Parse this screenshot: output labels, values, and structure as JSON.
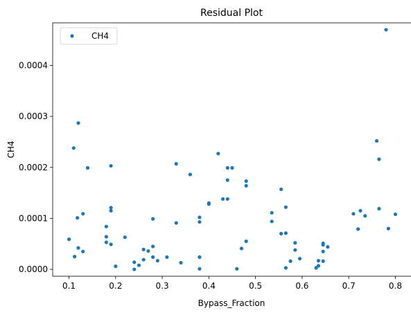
{
  "chart_data": {
    "type": "scatter",
    "title": "Residual Plot",
    "xlabel": "Bypass_Fraction",
    "ylabel": "CH4",
    "xlim": [
      0.065,
      0.835
    ],
    "ylim": [
      -1.35e-05,
      0.0004835
    ],
    "xticks": [
      {
        "value": 0.1,
        "label": "0.1"
      },
      {
        "value": 0.2,
        "label": "0.2"
      },
      {
        "value": 0.3,
        "label": "0.3"
      },
      {
        "value": 0.4,
        "label": "0.4"
      },
      {
        "value": 0.5,
        "label": "0.5"
      },
      {
        "value": 0.6,
        "label": "0.6"
      },
      {
        "value": 0.7,
        "label": "0.7"
      },
      {
        "value": 0.8,
        "label": "0.8"
      }
    ],
    "yticks": [
      {
        "value": 0.0,
        "label": "0.0000"
      },
      {
        "value": 0.0001,
        "label": "0.0001"
      },
      {
        "value": 0.0002,
        "label": "0.0002"
      },
      {
        "value": 0.0003,
        "label": "0.0003"
      },
      {
        "value": 0.0004,
        "label": "0.0004"
      }
    ],
    "grid": false,
    "legend": {
      "position": "upper-left"
    },
    "series": [
      {
        "name": "CH4",
        "color": "#1f77b4",
        "points": [
          [
            0.1,
            5.9e-05
          ],
          [
            0.11,
            0.000238
          ],
          [
            0.112,
            2.5e-05
          ],
          [
            0.118,
            0.000101
          ],
          [
            0.12,
            4.2e-05
          ],
          [
            0.12,
            0.000287
          ],
          [
            0.13,
            0.000109
          ],
          [
            0.13,
            3.5e-05
          ],
          [
            0.14,
            0.000199
          ],
          [
            0.18,
            8.4e-05
          ],
          [
            0.18,
            6.4e-05
          ],
          [
            0.18,
            5.3e-05
          ],
          [
            0.19,
            4.9e-05
          ],
          [
            0.19,
            0.000121
          ],
          [
            0.19,
            0.000115
          ],
          [
            0.19,
            0.000203
          ],
          [
            0.2,
            6e-06
          ],
          [
            0.22,
            6.3e-05
          ],
          [
            0.24,
            1.4e-05
          ],
          [
            0.24,
            0.0
          ],
          [
            0.25,
            8e-06
          ],
          [
            0.26,
            1.9e-05
          ],
          [
            0.26,
            3.9e-05
          ],
          [
            0.27,
            3.6e-05
          ],
          [
            0.28,
            9.9e-05
          ],
          [
            0.28,
            4.5e-05
          ],
          [
            0.28,
            2.4e-05
          ],
          [
            0.29,
            1.7e-05
          ],
          [
            0.31,
            2.4e-05
          ],
          [
            0.33,
            0.000207
          ],
          [
            0.33,
            9.1e-05
          ],
          [
            0.34,
            1.3e-05
          ],
          [
            0.36,
            0.000186
          ],
          [
            0.38,
            0.000102
          ],
          [
            0.38,
            9.3e-05
          ],
          [
            0.38,
            2.4e-05
          ],
          [
            0.38,
            1e-06
          ],
          [
            0.4,
            0.00013
          ],
          [
            0.4,
            0.000128
          ],
          [
            0.42,
            0.000227
          ],
          [
            0.43,
            0.000138
          ],
          [
            0.44,
            0.000199
          ],
          [
            0.44,
            0.000175
          ],
          [
            0.44,
            0.000138
          ],
          [
            0.45,
            0.000199
          ],
          [
            0.46,
            1e-06
          ],
          [
            0.47,
            4.1e-05
          ],
          [
            0.48,
            0.000173
          ],
          [
            0.48,
            0.000164
          ],
          [
            0.48,
            5.5e-05
          ],
          [
            0.535,
            0.000111
          ],
          [
            0.535,
            9.4e-05
          ],
          [
            0.555,
            0.000157
          ],
          [
            0.555,
            7e-05
          ],
          [
            0.565,
            0.000122
          ],
          [
            0.565,
            7.1e-05
          ],
          [
            0.565,
            3e-06
          ],
          [
            0.575,
            1.6e-05
          ],
          [
            0.585,
            5.2e-05
          ],
          [
            0.585,
            3.8e-05
          ],
          [
            0.595,
            2.1e-05
          ],
          [
            0.63,
            3e-06
          ],
          [
            0.635,
            7e-06
          ],
          [
            0.635,
            1.7e-05
          ],
          [
            0.645,
            5.1e-05
          ],
          [
            0.645,
            4.8e-05
          ],
          [
            0.645,
            3.5e-05
          ],
          [
            0.645,
            1.6e-05
          ],
          [
            0.655,
            4.4e-05
          ],
          [
            0.71,
            0.000109
          ],
          [
            0.72,
            7.9e-05
          ],
          [
            0.725,
            0.000115
          ],
          [
            0.735,
            0.000105
          ],
          [
            0.76,
            0.000252
          ],
          [
            0.765,
            0.000216
          ],
          [
            0.765,
            0.000119
          ],
          [
            0.78,
            0.00047
          ],
          [
            0.785,
            8e-05
          ],
          [
            0.8,
            0.000108
          ]
        ]
      }
    ]
  }
}
